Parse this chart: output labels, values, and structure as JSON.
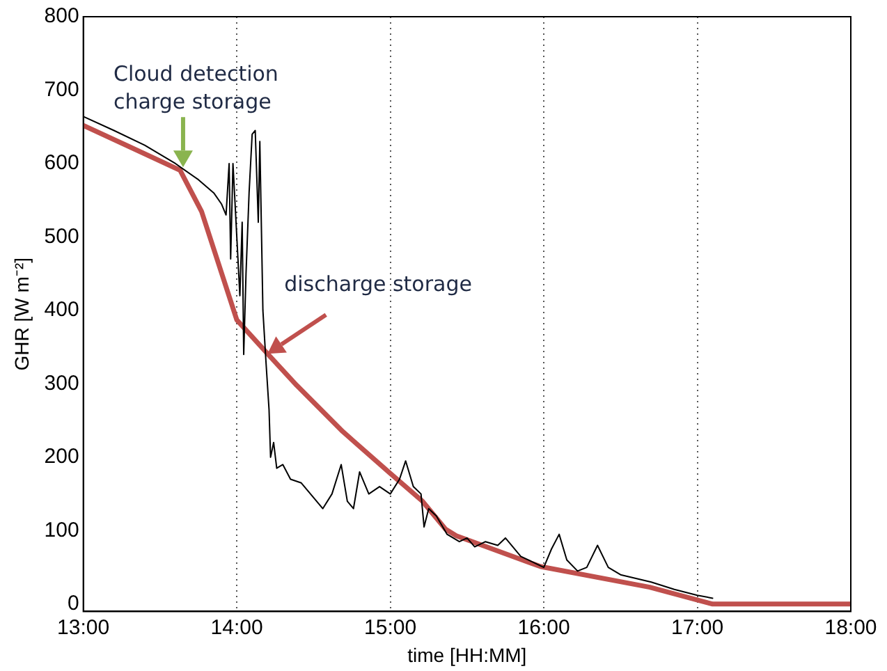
{
  "chart_data": {
    "type": "line",
    "xlabel": "time [HH:MM]",
    "ylabel": "GHR [W m⁻²]",
    "xlim": [
      13,
      18
    ],
    "xticks": [
      {
        "value": 13,
        "label": "13:00"
      },
      {
        "value": 14,
        "label": "14:00"
      },
      {
        "value": 15,
        "label": "15:00"
      },
      {
        "value": 16,
        "label": "16:00"
      },
      {
        "value": 17,
        "label": "17:00"
      },
      {
        "value": 18,
        "label": "18:00"
      }
    ],
    "ylim": [
      -10,
      800
    ],
    "yticks": [
      0,
      100,
      200,
      300,
      400,
      500,
      600,
      700,
      800
    ],
    "grid": "x",
    "legend": false,
    "marker": "none",
    "line_style": "solid",
    "series": [
      {
        "color": "#000000",
        "x": [
          13.0,
          13.2,
          13.4,
          13.6,
          13.75,
          13.85,
          13.9,
          13.93,
          13.95,
          13.96,
          13.975,
          14.02,
          14.035,
          14.045,
          14.06,
          14.08,
          14.1,
          14.12,
          14.14,
          14.15,
          14.17,
          14.19,
          14.21,
          14.22,
          14.24,
          14.26,
          14.3,
          14.35,
          14.42,
          14.5,
          14.56,
          14.62,
          14.68,
          14.72,
          14.76,
          14.8,
          14.86,
          14.93,
          15.0,
          15.06,
          15.1,
          15.15,
          15.2,
          15.22,
          15.25,
          15.3,
          15.37,
          15.45,
          15.5,
          15.55,
          15.62,
          15.7,
          15.75,
          15.85,
          15.95,
          16.0,
          16.05,
          16.1,
          16.15,
          16.22,
          16.28,
          16.35,
          16.42,
          16.5,
          16.6,
          16.7,
          16.85,
          17.0,
          17.1
        ],
        "values": [
          664,
          645,
          625,
          600,
          578,
          560,
          545,
          530,
          600,
          470,
          600,
          420,
          520,
          340,
          450,
          560,
          640,
          645,
          520,
          630,
          400,
          330,
          265,
          200,
          220,
          185,
          190,
          170,
          165,
          145,
          130,
          150,
          190,
          140,
          130,
          180,
          150,
          160,
          150,
          170,
          195,
          160,
          150,
          105,
          130,
          120,
          95,
          85,
          90,
          78,
          85,
          80,
          90,
          65,
          55,
          50,
          75,
          95,
          60,
          45,
          50,
          80,
          50,
          40,
          35,
          30,
          20,
          12,
          8
        ]
      },
      {
        "color": "#c0504d",
        "x": [
          13.0,
          13.3,
          13.63,
          13.77,
          14.0,
          14.2,
          14.39,
          14.69,
          15.0,
          15.21,
          15.36,
          15.43,
          15.98,
          16.69,
          17.1,
          18.0
        ],
        "values": [
          652,
          623,
          591,
          535,
          387,
          341,
          298,
          235,
          178,
          140,
          102,
          93,
          51,
          23,
          0,
          0
        ]
      }
    ],
    "annotations": [
      {
        "text": "Cloud detection\ncharge storage",
        "x": 13.65,
        "y": 595
      },
      {
        "text": "discharge storage",
        "x": 14.2,
        "y": 341
      }
    ]
  }
}
